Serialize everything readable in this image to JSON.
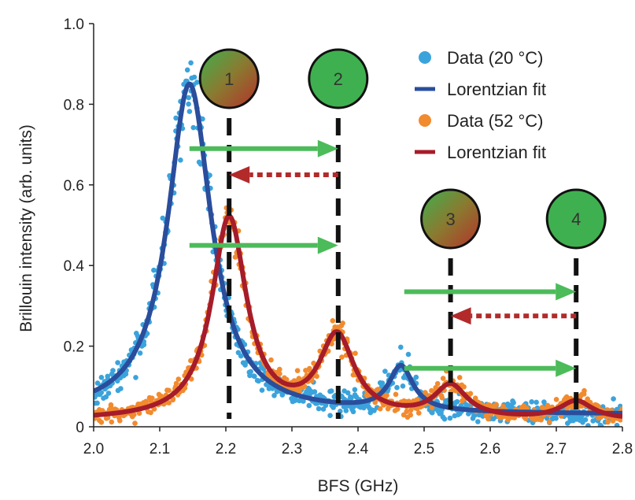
{
  "chart_data": {
    "type": "scatter",
    "xlabel": "BFS (GHz)",
    "ylabel": "Brillouin intensity (arb. units)",
    "xlim": [
      2.0,
      2.8
    ],
    "ylim": [
      0,
      1.0
    ],
    "xticks": [
      "2.0",
      "2.1",
      "2.2",
      "2.3",
      "2.4",
      "2.5",
      "2.6",
      "2.7",
      "2.8"
    ],
    "yticks": [
      "0",
      "0.2",
      "0.4",
      "0.6",
      "0.8",
      "1.0"
    ],
    "legend_position": "top-right",
    "series": [
      {
        "name": "Data (20 °C)",
        "kind": "scatter",
        "color": "#3ba3dc",
        "model": {
          "baseline": 0.03,
          "peaks": [
            {
              "center": 2.145,
              "amplitude": 0.82,
              "hwhm": 0.04
            },
            {
              "center": 2.465,
              "amplitude": 0.11,
              "hwhm": 0.022
            }
          ]
        },
        "noise": 0.05
      },
      {
        "name": "Lorentzian fit",
        "kind": "line",
        "color": "#2a4d9c",
        "model": {
          "baseline": 0.03,
          "peaks": [
            {
              "center": 2.145,
              "amplitude": 0.82,
              "hwhm": 0.04
            },
            {
              "center": 2.465,
              "amplitude": 0.11,
              "hwhm": 0.022
            }
          ]
        }
      },
      {
        "name": "Data (52 °C)",
        "kind": "scatter",
        "color": "#f28a2e",
        "model": {
          "baseline": 0.015,
          "peaks": [
            {
              "center": 2.205,
              "amplitude": 0.5,
              "hwhm": 0.032
            },
            {
              "center": 2.368,
              "amplitude": 0.2,
              "hwhm": 0.032
            },
            {
              "center": 2.54,
              "amplitude": 0.08,
              "hwhm": 0.03
            },
            {
              "center": 2.73,
              "amplitude": 0.045,
              "hwhm": 0.03
            }
          ]
        },
        "noise": 0.035
      },
      {
        "name": "Lorentzian fit",
        "kind": "line",
        "color": "#a61c2a",
        "model": {
          "baseline": 0.015,
          "peaks": [
            {
              "center": 2.205,
              "amplitude": 0.5,
              "hwhm": 0.032
            },
            {
              "center": 2.368,
              "amplitude": 0.2,
              "hwhm": 0.032
            },
            {
              "center": 2.54,
              "amplitude": 0.08,
              "hwhm": 0.03
            },
            {
              "center": 2.73,
              "amplitude": 0.045,
              "hwhm": 0.03
            }
          ]
        }
      }
    ],
    "vertical_markers": [
      {
        "label": "1",
        "x": 2.205,
        "style": "gradient"
      },
      {
        "label": "2",
        "x": 2.37,
        "style": "green"
      },
      {
        "label": "3",
        "x": 2.54,
        "style": "gradient"
      },
      {
        "label": "4",
        "x": 2.73,
        "style": "green"
      }
    ],
    "arrows": [
      {
        "from": 2.145,
        "to": 2.37,
        "y": 0.69,
        "style": "solid",
        "color": "#4cbb5a"
      },
      {
        "from": 2.37,
        "to": 2.205,
        "y": 0.625,
        "style": "dotted",
        "color": "#b22a2a"
      },
      {
        "from": 2.145,
        "to": 2.37,
        "y": 0.45,
        "style": "solid",
        "color": "#4cbb5a"
      },
      {
        "from": 2.47,
        "to": 2.73,
        "y": 0.335,
        "style": "solid",
        "color": "#4cbb5a"
      },
      {
        "from": 2.73,
        "to": 2.54,
        "y": 0.275,
        "style": "dotted",
        "color": "#b22a2a"
      },
      {
        "from": 2.47,
        "to": 2.73,
        "y": 0.145,
        "style": "solid",
        "color": "#4cbb5a"
      }
    ],
    "colors": {
      "marker_green": "#3fb04f",
      "marker_red": "#b5302a",
      "marker_line": "#111111",
      "axis": "#222222"
    }
  }
}
